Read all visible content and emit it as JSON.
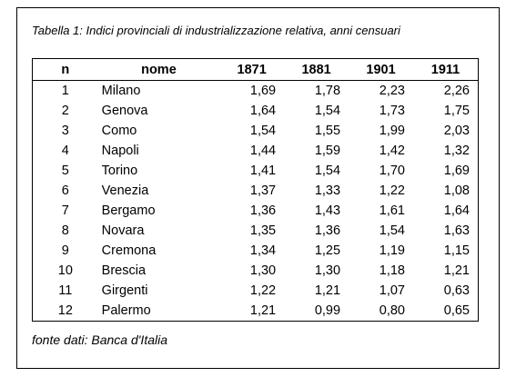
{
  "caption": "Tabella 1: Indici provinciali di industrializzazione relativa, anni censuari",
  "table": {
    "headers": [
      "n",
      "nome",
      "1871",
      "1881",
      "1901",
      "1911"
    ],
    "rows": [
      [
        "1",
        "Milano",
        "1,69",
        "1,78",
        "2,23",
        "2,26"
      ],
      [
        "2",
        "Genova",
        "1,64",
        "1,54",
        "1,73",
        "1,75"
      ],
      [
        "3",
        "Como",
        "1,54",
        "1,55",
        "1,99",
        "2,03"
      ],
      [
        "4",
        "Napoli",
        "1,44",
        "1,59",
        "1,42",
        "1,32"
      ],
      [
        "5",
        "Torino",
        "1,41",
        "1,54",
        "1,70",
        "1,69"
      ],
      [
        "6",
        "Venezia",
        "1,37",
        "1,33",
        "1,22",
        "1,08"
      ],
      [
        "7",
        "Bergamo",
        "1,36",
        "1,43",
        "1,61",
        "1,64"
      ],
      [
        "8",
        "Novara",
        "1,35",
        "1,36",
        "1,54",
        "1,63"
      ],
      [
        "9",
        "Cremona",
        "1,34",
        "1,25",
        "1,19",
        "1,15"
      ],
      [
        "10",
        "Brescia",
        "1,30",
        "1,30",
        "1,18",
        "1,21"
      ],
      [
        "11",
        "Girgenti",
        "1,22",
        "1,21",
        "1,07",
        "0,63"
      ],
      [
        "12",
        "Palermo",
        "1,21",
        "0,99",
        "0,80",
        "0,65"
      ]
    ]
  },
  "footnote": "fonte dati: Banca d'Italia"
}
